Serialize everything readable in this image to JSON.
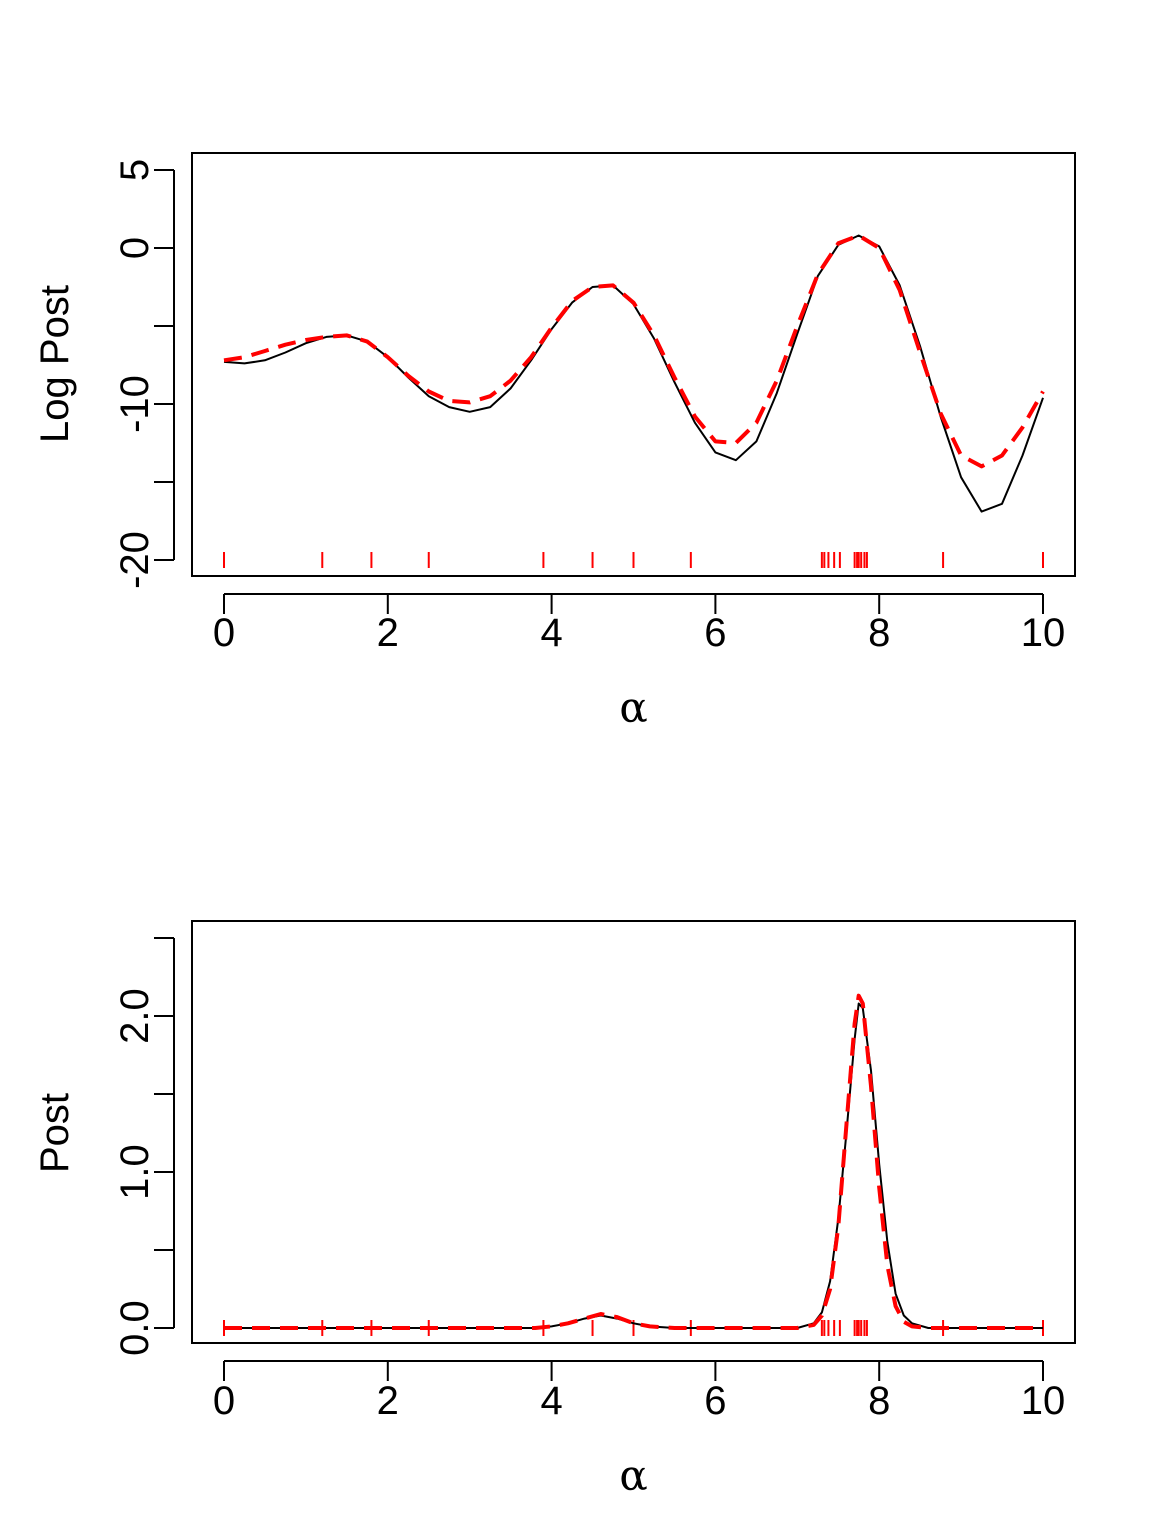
{
  "chart_data": [
    {
      "type": "line",
      "title": "",
      "xlabel": "α",
      "ylabel": "Log Post",
      "xlim": [
        0,
        10
      ],
      "ylim": [
        -20,
        5
      ],
      "grid": false,
      "legend": "none",
      "x_ticks": [
        "0",
        "2",
        "4",
        "6",
        "8",
        "10"
      ],
      "y_ticks": [
        "-20",
        "",
        "-10",
        "",
        "0",
        "5"
      ],
      "series": [
        {
          "color": "#000000",
          "style": "solid",
          "x": [
            0,
            0.25,
            0.5,
            0.75,
            1.0,
            1.25,
            1.5,
            1.75,
            2.0,
            2.25,
            2.5,
            2.75,
            3.0,
            3.25,
            3.5,
            3.75,
            4.0,
            4.25,
            4.5,
            4.75,
            5.0,
            5.25,
            5.5,
            5.75,
            6.0,
            6.25,
            6.5,
            6.75,
            7.0,
            7.25,
            7.5,
            7.75,
            8.0,
            8.25,
            8.5,
            8.75,
            9.0,
            9.25,
            9.5,
            9.75,
            10.0
          ],
          "y": [
            -7.3,
            -7.4,
            -7.2,
            -6.7,
            -6.1,
            -5.7,
            -5.6,
            -6.0,
            -7.0,
            -8.3,
            -9.5,
            -10.2,
            -10.5,
            -10.2,
            -9.0,
            -7.2,
            -5.2,
            -3.5,
            -2.5,
            -2.4,
            -3.6,
            -5.8,
            -8.6,
            -11.2,
            -13.1,
            -13.6,
            -12.4,
            -9.3,
            -5.5,
            -1.8,
            0.2,
            0.8,
            0.1,
            -2.4,
            -6.3,
            -10.8,
            -14.7,
            -16.9,
            -16.4,
            -13.3,
            -9.6
          ]
        },
        {
          "color": "#ff0000",
          "style": "dashed",
          "x": [
            0,
            0.25,
            0.5,
            0.75,
            1.0,
            1.25,
            1.5,
            1.75,
            2.0,
            2.25,
            2.5,
            2.75,
            3.0,
            3.25,
            3.5,
            3.75,
            4.0,
            4.25,
            4.5,
            4.75,
            5.0,
            5.25,
            5.5,
            5.75,
            6.0,
            6.25,
            6.5,
            6.75,
            7.0,
            7.25,
            7.5,
            7.75,
            8.0,
            8.25,
            8.5,
            8.75,
            9.0,
            9.25,
            9.5,
            9.75,
            10.0
          ],
          "y": [
            -7.2,
            -7.0,
            -6.6,
            -6.2,
            -5.9,
            -5.7,
            -5.6,
            -6.0,
            -7.0,
            -8.2,
            -9.2,
            -9.8,
            -9.9,
            -9.5,
            -8.5,
            -7.0,
            -5.1,
            -3.4,
            -2.5,
            -2.4,
            -3.5,
            -5.6,
            -8.3,
            -10.8,
            -12.4,
            -12.5,
            -11.2,
            -8.5,
            -5.0,
            -1.7,
            0.3,
            0.8,
            0.0,
            -2.7,
            -6.7,
            -10.6,
            -13.3,
            -14.0,
            -13.3,
            -11.5,
            -9.2
          ]
        }
      ],
      "rug": [
        0,
        1.2,
        1.8,
        2.5,
        3.9,
        4.5,
        5.0,
        5.7,
        7.3,
        7.33,
        7.38,
        7.45,
        7.52,
        7.7,
        7.73,
        7.75,
        7.78,
        7.82,
        7.85,
        8.78,
        10.0
      ]
    },
    {
      "type": "line",
      "title": "",
      "xlabel": "α",
      "ylabel": "Post",
      "xlim": [
        0,
        10
      ],
      "ylim": [
        0,
        2.5
      ],
      "grid": false,
      "legend": "none",
      "x_ticks": [
        "0",
        "2",
        "4",
        "6",
        "8",
        "10"
      ],
      "y_ticks": [
        "0.0",
        "",
        "1.0",
        "",
        "2.0",
        ""
      ],
      "series": [
        {
          "color": "#000000",
          "style": "solid",
          "x": [
            0,
            1,
            2,
            3,
            3.8,
            4.0,
            4.2,
            4.4,
            4.6,
            4.8,
            5.0,
            5.2,
            5.5,
            6.0,
            6.5,
            7.0,
            7.2,
            7.3,
            7.4,
            7.5,
            7.6,
            7.7,
            7.75,
            7.8,
            7.9,
            8.0,
            8.1,
            8.2,
            8.3,
            8.4,
            8.6,
            9.0,
            10.0
          ],
          "y": [
            0.0,
            0.0,
            0.0,
            0.0,
            0.0,
            0.01,
            0.03,
            0.06,
            0.08,
            0.06,
            0.03,
            0.01,
            0.0,
            0.0,
            0.0,
            0.0,
            0.03,
            0.1,
            0.3,
            0.7,
            1.25,
            1.85,
            2.08,
            2.05,
            1.65,
            1.05,
            0.55,
            0.22,
            0.08,
            0.03,
            0.0,
            0.0,
            0.0
          ]
        },
        {
          "color": "#ff0000",
          "style": "dashed",
          "x": [
            0,
            1,
            2,
            3,
            3.8,
            4.0,
            4.2,
            4.4,
            4.6,
            4.8,
            5.0,
            5.2,
            5.5,
            6.0,
            6.5,
            7.0,
            7.2,
            7.3,
            7.4,
            7.5,
            7.6,
            7.7,
            7.75,
            7.8,
            7.9,
            8.0,
            8.1,
            8.2,
            8.3,
            8.4,
            8.6,
            9.0,
            10.0
          ],
          "y": [
            0.0,
            0.0,
            0.0,
            0.0,
            0.0,
            0.01,
            0.03,
            0.06,
            0.09,
            0.07,
            0.03,
            0.01,
            0.0,
            0.0,
            0.0,
            0.0,
            0.02,
            0.08,
            0.25,
            0.65,
            1.3,
            1.95,
            2.13,
            2.08,
            1.55,
            0.9,
            0.4,
            0.14,
            0.04,
            0.01,
            0.0,
            0.0,
            0.0
          ]
        }
      ],
      "rug": [
        0,
        1.2,
        1.8,
        2.5,
        3.9,
        4.5,
        5.0,
        5.7,
        7.3,
        7.33,
        7.38,
        7.45,
        7.52,
        7.7,
        7.73,
        7.75,
        7.78,
        7.82,
        7.85,
        8.78,
        10.0
      ]
    }
  ]
}
